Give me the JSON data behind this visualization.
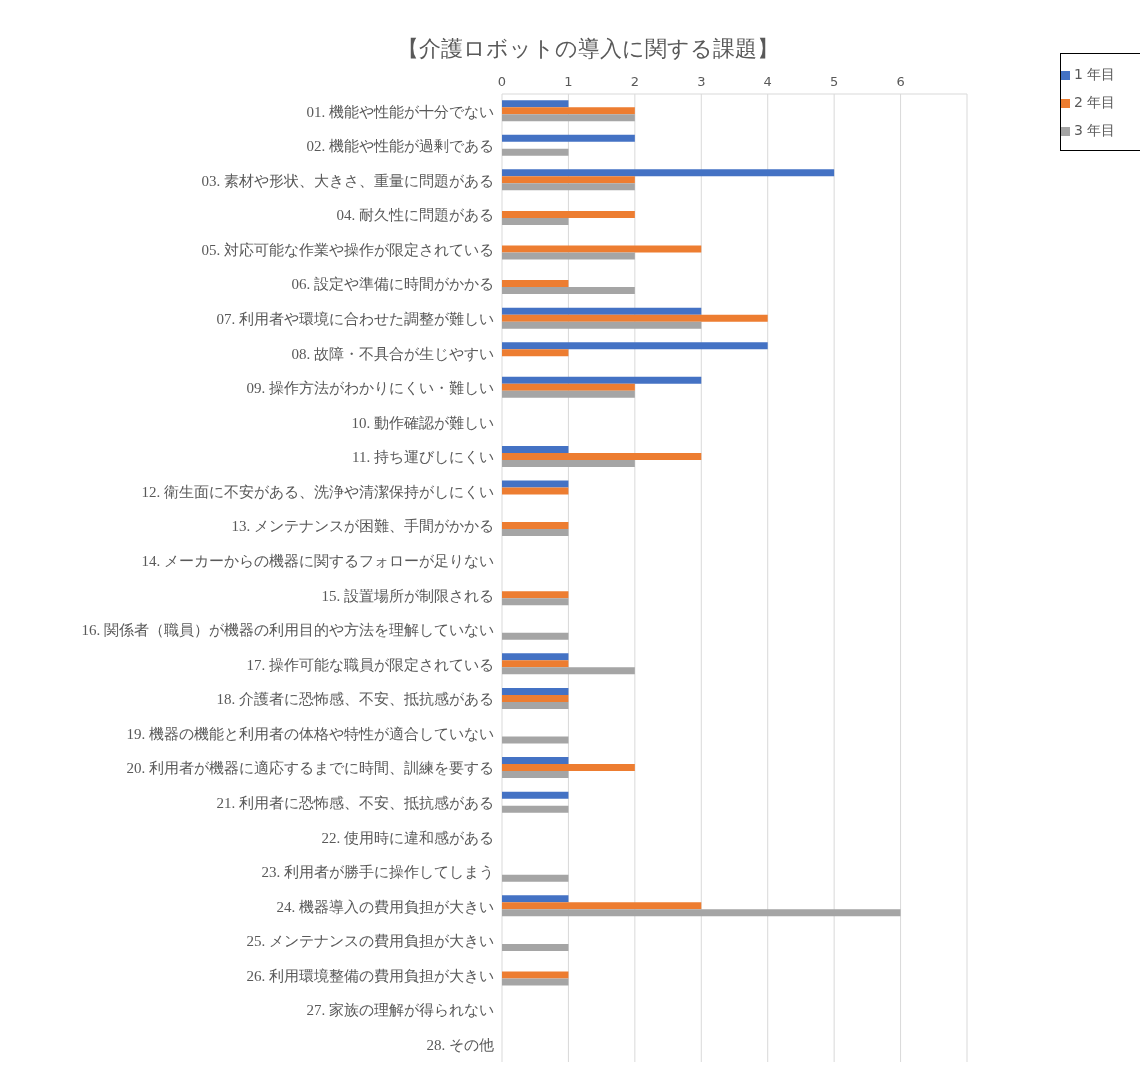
{
  "chart_data": {
    "type": "bar",
    "orientation": "horizontal",
    "title": "【介護ロボットの導入に関する課題】",
    "categories": [
      "01. 機能や性能が十分でない",
      "02. 機能や性能が過剰である",
      "03. 素材や形状、大きさ、重量に問題がある",
      "04. 耐久性に問題がある",
      "05. 対応可能な作業や操作が限定されている",
      "06. 設定や準備に時間がかかる",
      "07. 利用者や環境に合わせた調整が難しい",
      "08. 故障・不具合が生じやすい",
      "09. 操作方法がわかりにくい・難しい",
      "10. 動作確認が難しい",
      "11. 持ち運びしにくい",
      "12. 衛生面に不安がある、洗浄や清潔保持がしにくい",
      "13. メンテナンスが困難、手間がかかる",
      "14. メーカーからの機器に関するフォローが足りない",
      "15. 設置場所が制限される",
      "16. 関係者（職員）が機器の利用目的や方法を理解していない",
      "17. 操作可能な職員が限定されている",
      "18. 介護者に恐怖感、不安、抵抗感がある",
      "19. 機器の機能と利用者の体格や特性が適合していない",
      "20. 利用者が機器に適応するまでに時間、訓練を要する",
      "21. 利用者に恐怖感、不安、抵抗感がある",
      "22. 使用時に違和感がある",
      "23. 利用者が勝手に操作してしまう",
      "24. 機器導入の費用負担が大きい",
      "25. メンテナンスの費用負担が大きい",
      "26. 利用環境整備の費用負担が大きい",
      "27. 家族の理解が得られない",
      "28. その他"
    ],
    "series": [
      {
        "name": "1 年目",
        "color": "#4472c4",
        "values": [
          1,
          2,
          5,
          0,
          0,
          0,
          3,
          4,
          3,
          0,
          1,
          1,
          0,
          0,
          0,
          0,
          1,
          1,
          0,
          1,
          1,
          0,
          0,
          1,
          0,
          0,
          0,
          0
        ]
      },
      {
        "name": "2 年目",
        "color": "#ed7d31",
        "values": [
          2,
          0,
          2,
          2,
          3,
          1,
          4,
          1,
          2,
          0,
          3,
          1,
          1,
          0,
          1,
          0,
          1,
          1,
          0,
          2,
          0,
          0,
          0,
          3,
          0,
          1,
          0,
          0
        ]
      },
      {
        "name": "3 年目",
        "color": "#a5a5a5",
        "values": [
          2,
          1,
          2,
          1,
          2,
          2,
          3,
          0,
          2,
          0,
          2,
          0,
          1,
          0,
          1,
          1,
          2,
          1,
          1,
          1,
          1,
          0,
          1,
          6,
          1,
          1,
          0,
          0
        ]
      }
    ],
    "xlim": [
      0,
      7
    ],
    "xticks": [
      0,
      1,
      2,
      3,
      4,
      5,
      6,
      {
        "value": 7,
        "label": null
      }
    ],
    "grid": "x",
    "legend": "top right"
  }
}
